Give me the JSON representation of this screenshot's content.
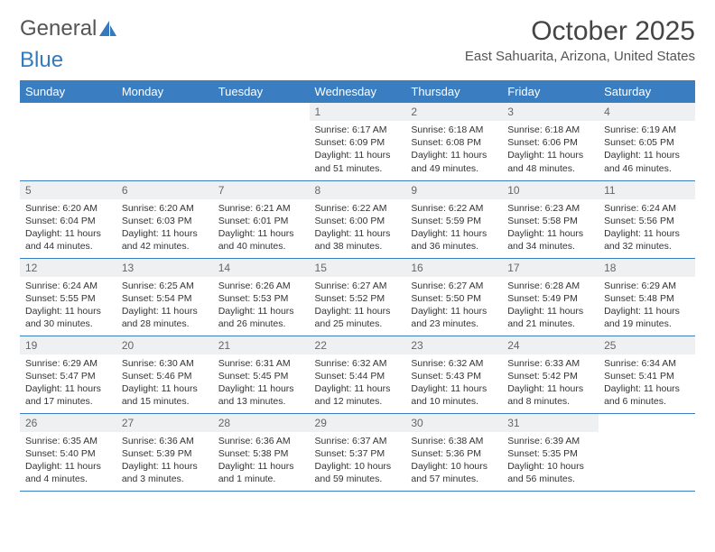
{
  "logo": {
    "text1": "General",
    "text2": "Blue"
  },
  "title": "October 2025",
  "location": "East Sahuarita, Arizona, United States",
  "colors": {
    "header_bg": "#3a7ec1",
    "header_text": "#ffffff",
    "daynum_bg": "#eef0f2",
    "border": "#3a7ec1",
    "logo_blue": "#357abd"
  },
  "weekdays": [
    "Sunday",
    "Monday",
    "Tuesday",
    "Wednesday",
    "Thursday",
    "Friday",
    "Saturday"
  ],
  "weeks": [
    [
      null,
      null,
      null,
      {
        "n": "1",
        "sr": "6:17 AM",
        "ss": "6:09 PM",
        "dl": "11 hours and 51 minutes."
      },
      {
        "n": "2",
        "sr": "6:18 AM",
        "ss": "6:08 PM",
        "dl": "11 hours and 49 minutes."
      },
      {
        "n": "3",
        "sr": "6:18 AM",
        "ss": "6:06 PM",
        "dl": "11 hours and 48 minutes."
      },
      {
        "n": "4",
        "sr": "6:19 AM",
        "ss": "6:05 PM",
        "dl": "11 hours and 46 minutes."
      }
    ],
    [
      {
        "n": "5",
        "sr": "6:20 AM",
        "ss": "6:04 PM",
        "dl": "11 hours and 44 minutes."
      },
      {
        "n": "6",
        "sr": "6:20 AM",
        "ss": "6:03 PM",
        "dl": "11 hours and 42 minutes."
      },
      {
        "n": "7",
        "sr": "6:21 AM",
        "ss": "6:01 PM",
        "dl": "11 hours and 40 minutes."
      },
      {
        "n": "8",
        "sr": "6:22 AM",
        "ss": "6:00 PM",
        "dl": "11 hours and 38 minutes."
      },
      {
        "n": "9",
        "sr": "6:22 AM",
        "ss": "5:59 PM",
        "dl": "11 hours and 36 minutes."
      },
      {
        "n": "10",
        "sr": "6:23 AM",
        "ss": "5:58 PM",
        "dl": "11 hours and 34 minutes."
      },
      {
        "n": "11",
        "sr": "6:24 AM",
        "ss": "5:56 PM",
        "dl": "11 hours and 32 minutes."
      }
    ],
    [
      {
        "n": "12",
        "sr": "6:24 AM",
        "ss": "5:55 PM",
        "dl": "11 hours and 30 minutes."
      },
      {
        "n": "13",
        "sr": "6:25 AM",
        "ss": "5:54 PM",
        "dl": "11 hours and 28 minutes."
      },
      {
        "n": "14",
        "sr": "6:26 AM",
        "ss": "5:53 PM",
        "dl": "11 hours and 26 minutes."
      },
      {
        "n": "15",
        "sr": "6:27 AM",
        "ss": "5:52 PM",
        "dl": "11 hours and 25 minutes."
      },
      {
        "n": "16",
        "sr": "6:27 AM",
        "ss": "5:50 PM",
        "dl": "11 hours and 23 minutes."
      },
      {
        "n": "17",
        "sr": "6:28 AM",
        "ss": "5:49 PM",
        "dl": "11 hours and 21 minutes."
      },
      {
        "n": "18",
        "sr": "6:29 AM",
        "ss": "5:48 PM",
        "dl": "11 hours and 19 minutes."
      }
    ],
    [
      {
        "n": "19",
        "sr": "6:29 AM",
        "ss": "5:47 PM",
        "dl": "11 hours and 17 minutes."
      },
      {
        "n": "20",
        "sr": "6:30 AM",
        "ss": "5:46 PM",
        "dl": "11 hours and 15 minutes."
      },
      {
        "n": "21",
        "sr": "6:31 AM",
        "ss": "5:45 PM",
        "dl": "11 hours and 13 minutes."
      },
      {
        "n": "22",
        "sr": "6:32 AM",
        "ss": "5:44 PM",
        "dl": "11 hours and 12 minutes."
      },
      {
        "n": "23",
        "sr": "6:32 AM",
        "ss": "5:43 PM",
        "dl": "11 hours and 10 minutes."
      },
      {
        "n": "24",
        "sr": "6:33 AM",
        "ss": "5:42 PM",
        "dl": "11 hours and 8 minutes."
      },
      {
        "n": "25",
        "sr": "6:34 AM",
        "ss": "5:41 PM",
        "dl": "11 hours and 6 minutes."
      }
    ],
    [
      {
        "n": "26",
        "sr": "6:35 AM",
        "ss": "5:40 PM",
        "dl": "11 hours and 4 minutes."
      },
      {
        "n": "27",
        "sr": "6:36 AM",
        "ss": "5:39 PM",
        "dl": "11 hours and 3 minutes."
      },
      {
        "n": "28",
        "sr": "6:36 AM",
        "ss": "5:38 PM",
        "dl": "11 hours and 1 minute."
      },
      {
        "n": "29",
        "sr": "6:37 AM",
        "ss": "5:37 PM",
        "dl": "10 hours and 59 minutes."
      },
      {
        "n": "30",
        "sr": "6:38 AM",
        "ss": "5:36 PM",
        "dl": "10 hours and 57 minutes."
      },
      {
        "n": "31",
        "sr": "6:39 AM",
        "ss": "5:35 PM",
        "dl": "10 hours and 56 minutes."
      },
      null
    ]
  ],
  "labels": {
    "sunrise": "Sunrise:",
    "sunset": "Sunset:",
    "daylight": "Daylight:"
  }
}
